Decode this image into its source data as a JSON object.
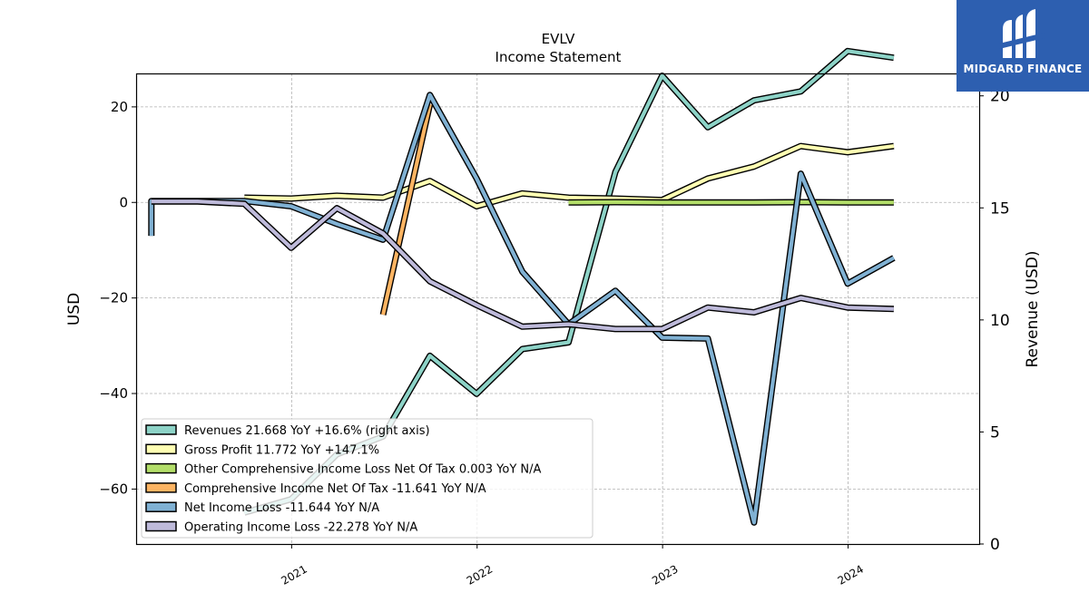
{
  "brand": {
    "name": "MIDGARD FINANCE",
    "bg_color": "#2d5fb0"
  },
  "chart_data": {
    "type": "line",
    "title": "EVLV",
    "subtitle": "Income Statement",
    "ylabel": "USD",
    "ylabel_right": "Revenue (USD)",
    "ylim": [
      -71.5,
      27
    ],
    "ylim_right": [
      0,
      21.0
    ],
    "yticks": [
      20,
      0,
      -20,
      -40,
      -60
    ],
    "yticks_right": [
      0,
      5,
      10,
      15,
      20
    ],
    "ytick_labels": [
      "20",
      "0",
      "−20",
      "−40",
      "−60"
    ],
    "yticks_right_labels": [
      "0",
      "5",
      "10",
      "15",
      "20"
    ],
    "xlim": [
      "2020-03-01",
      "2024-09-15"
    ],
    "xticks": [
      "2021-01-01",
      "2022-01-01",
      "2023-01-01",
      "2024-01-01"
    ],
    "xtick_labels": [
      "2021",
      "2022",
      "2023",
      "2024"
    ],
    "grid": true,
    "legend_position": "lower-left",
    "series": [
      {
        "name": "Revenues",
        "legend": "Revenues  21.668 YoY +16.6% (right axis)",
        "axis": "right",
        "color": "#8dd3c7",
        "x": [
          "2020-09-30",
          "2020-12-31",
          "2021-03-31",
          "2021-06-30",
          "2021-09-30",
          "2021-12-31",
          "2022-03-31",
          "2022-06-30",
          "2022-09-30",
          "2022-12-31",
          "2023-03-31",
          "2023-06-30",
          "2023-09-30",
          "2023-12-31",
          "2024-03-31"
        ],
        "y": [
          1.4,
          2.0,
          4.0,
          4.8,
          8.4,
          6.7,
          8.7,
          9.0,
          16.6,
          20.9,
          18.6,
          19.8,
          20.2,
          22.0,
          21.7
        ]
      },
      {
        "name": "Gross Profit",
        "legend": "Gross Profit  11.772 YoY +147.1%",
        "axis": "left",
        "color": "#ffffb3",
        "x": [
          "2020-09-30",
          "2020-12-31",
          "2021-03-31",
          "2021-06-30",
          "2021-09-30",
          "2021-12-31",
          "2022-03-31",
          "2022-06-30",
          "2022-09-30",
          "2022-12-31",
          "2023-03-31",
          "2023-06-30",
          "2023-09-30",
          "2023-12-31",
          "2024-03-31"
        ],
        "y": [
          1.0,
          0.8,
          1.4,
          1.0,
          4.5,
          -0.8,
          1.9,
          1.0,
          0.8,
          0.5,
          5.0,
          7.5,
          11.8,
          10.5,
          11.8
        ]
      },
      {
        "name": "Other Comprehensive Income Loss Net Of Tax",
        "legend": "Other Comprehensive Income Loss Net Of Tax  0.003 YoY N/A",
        "axis": "left",
        "color": "#b3de69",
        "x": [
          "2022-06-30",
          "2022-09-30",
          "2022-12-31",
          "2023-03-31",
          "2023-06-30",
          "2023-09-30",
          "2023-12-31",
          "2024-03-31"
        ],
        "y": [
          0.0,
          0.05,
          0.0,
          0.0,
          0.0,
          0.05,
          0.0,
          0.0
        ]
      },
      {
        "name": "Comprehensive Income Net Of Tax",
        "legend": "Comprehensive Income Net Of Tax  -11.641 YoY N/A",
        "axis": "left",
        "color": "#fdb462",
        "x": [
          "2021-06-30",
          "2021-09-30"
        ],
        "y": [
          -23.5,
          20.5
        ]
      },
      {
        "name": "Net Income Loss",
        "legend": "Net Income Loss  -11.644 YoY N/A",
        "axis": "left",
        "color": "#80b1d3",
        "x": [
          "2020-03-31",
          "2020-03-31",
          "2020-06-30",
          "2020-09-30",
          "2020-12-31",
          "2021-03-31",
          "2021-06-30",
          "2021-09-30",
          "2021-12-31",
          "2022-03-31",
          "2022-06-30",
          "2022-09-30",
          "2022-12-31",
          "2023-03-31",
          "2023-06-30",
          "2023-09-30",
          "2023-12-31",
          "2024-03-31"
        ],
        "y": [
          -7.0,
          0.3,
          0.3,
          0.3,
          -0.8,
          -4.5,
          -7.8,
          22.5,
          5.0,
          -14.5,
          -25.5,
          -18.5,
          -28.3,
          -28.5,
          -67.0,
          6.0,
          -17.0,
          -11.6
        ]
      },
      {
        "name": "Operating Income Loss",
        "legend": "Operating Income Loss  -22.278 YoY N/A",
        "axis": "left",
        "color": "#bebada",
        "x": [
          "2020-03-31",
          "2020-06-30",
          "2020-09-30",
          "2020-12-31",
          "2021-03-31",
          "2021-06-30",
          "2021-09-30",
          "2021-12-31",
          "2022-03-31",
          "2022-06-30",
          "2022-09-30",
          "2022-12-31",
          "2023-03-31",
          "2023-06-30",
          "2023-09-30",
          "2023-12-31",
          "2024-03-31"
        ],
        "y": [
          0.2,
          0.2,
          -0.3,
          -9.5,
          -1.2,
          -6.5,
          -16.5,
          -21.5,
          -26.0,
          -25.5,
          -26.5,
          -26.5,
          -22.0,
          -23.0,
          -20.0,
          -22.0,
          -22.3
        ]
      }
    ]
  }
}
